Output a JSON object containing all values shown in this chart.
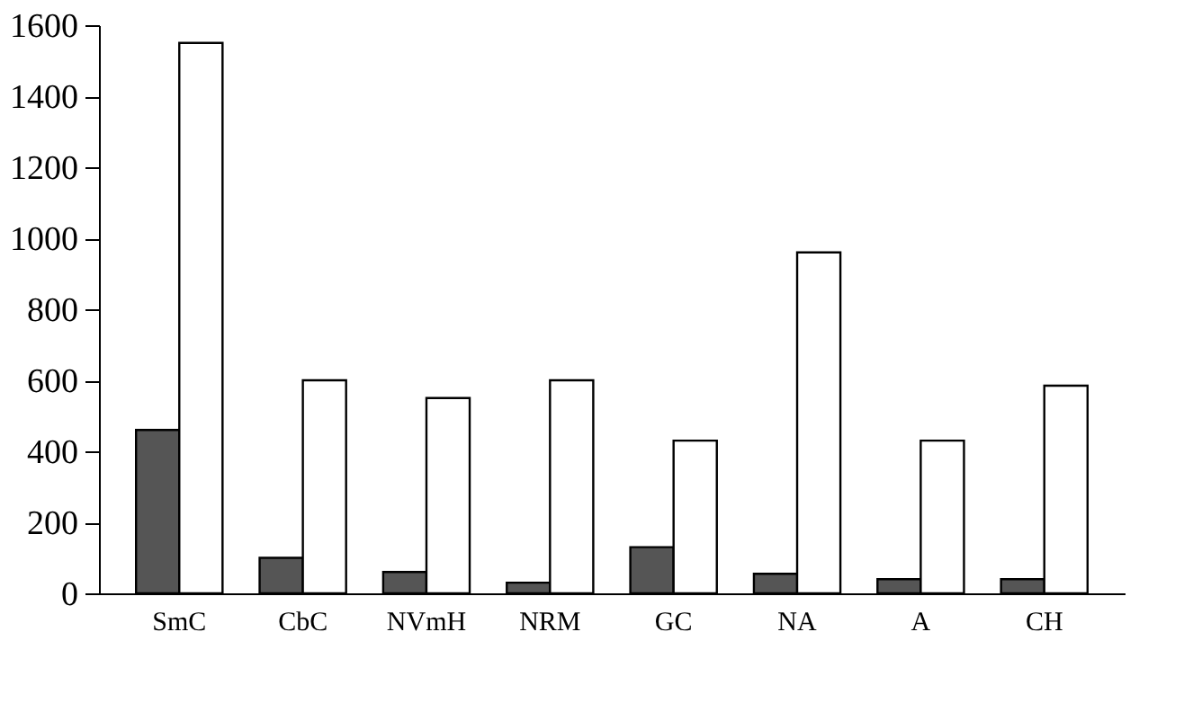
{
  "chart_data": {
    "type": "bar",
    "categories": [
      "SmC",
      "CbC",
      "NVmH",
      "NRM",
      "GC",
      "NA",
      "A",
      "CH"
    ],
    "series": [
      {
        "color": "#555555",
        "values": [
          460,
          100,
          60,
          30,
          130,
          55,
          40,
          40
        ]
      },
      {
        "color": "#ffffff",
        "values": [
          1550,
          600,
          550,
          600,
          430,
          960,
          430,
          585
        ]
      }
    ],
    "ylim": [
      0,
      1600
    ],
    "yticks": [
      0,
      200,
      400,
      600,
      800,
      1000,
      1200,
      1400,
      1600
    ],
    "grid": false
  }
}
